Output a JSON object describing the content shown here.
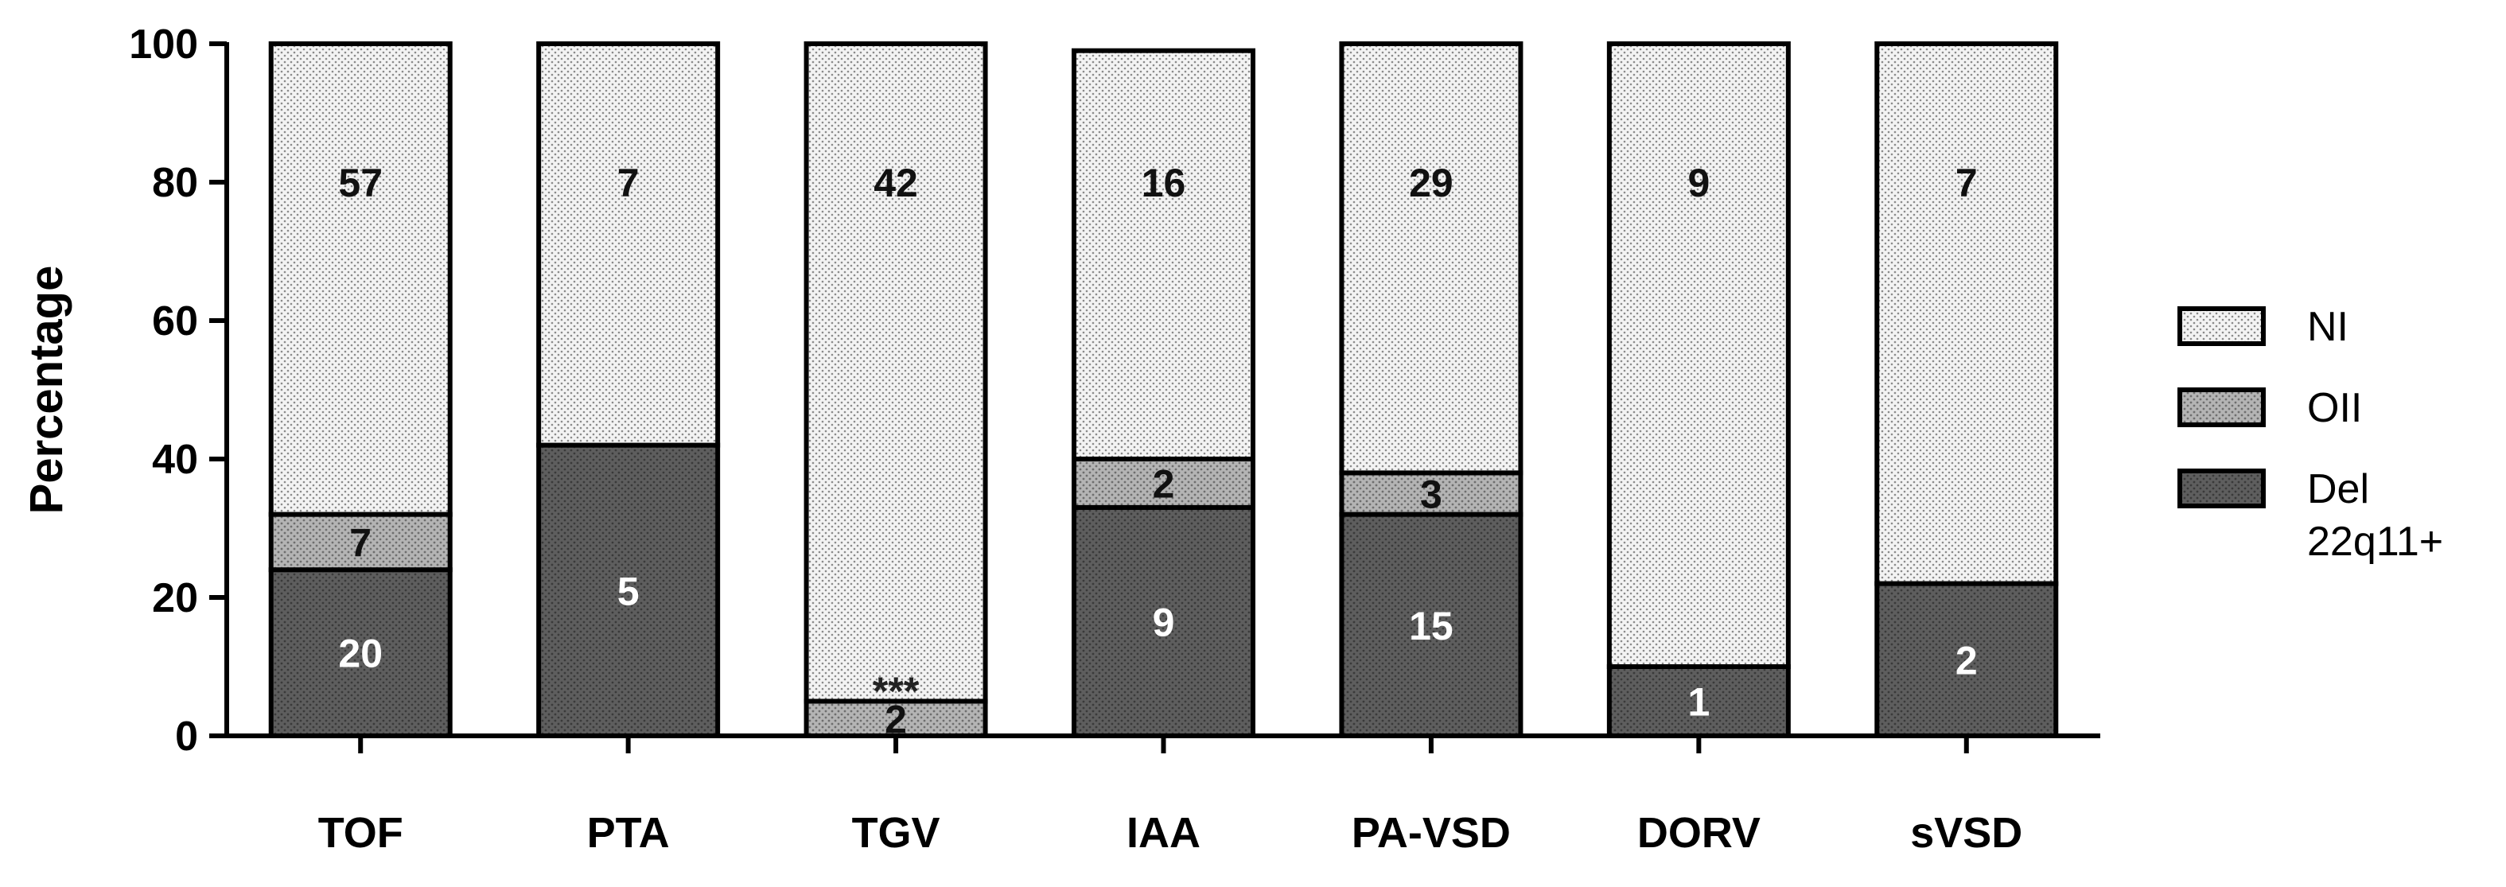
{
  "chart_data": {
    "type": "bar",
    "stacked": true,
    "ylabel": "Percentage",
    "xlabel": "",
    "ylim": [
      0,
      100
    ],
    "yticks": [
      0,
      20,
      40,
      60,
      80,
      100
    ],
    "grid": false,
    "legend_position": "right",
    "categories": [
      "TOF",
      "PTA",
      "TGV",
      "IAA",
      "PA-VSD",
      "DORV",
      "sVSD"
    ],
    "series": [
      {
        "name": "Del 22q11+",
        "key": "del",
        "color": "#555555",
        "pattern": "dense-dark",
        "values": [
          24,
          42,
          0,
          33,
          32,
          10,
          22
        ],
        "labels": [
          "20",
          "5",
          "",
          "9",
          "15",
          "1",
          "2"
        ],
        "label_color": "#ffffff"
      },
      {
        "name": "OII",
        "key": "oii",
        "color": "#aaaaaa",
        "pattern": "medium-gray",
        "values": [
          8,
          0,
          5,
          7,
          6,
          0,
          0
        ],
        "labels": [
          "7",
          "",
          "2",
          "2",
          "3",
          "",
          ""
        ],
        "label_color": "#111111"
      },
      {
        "name": "NI",
        "key": "ni",
        "color": "#f2f2f2",
        "pattern": "light-dotted",
        "values": [
          68,
          58,
          95,
          59,
          62,
          90,
          78
        ],
        "labels": [
          "57",
          "7",
          "42",
          "16",
          "29",
          "9",
          "7"
        ],
        "label_color": "#111111"
      }
    ],
    "annotations": [
      {
        "category": "TGV",
        "text": "***",
        "y": 7.5
      }
    ],
    "legend_order": [
      "NI",
      "OII",
      "Del 22q11+"
    ]
  }
}
